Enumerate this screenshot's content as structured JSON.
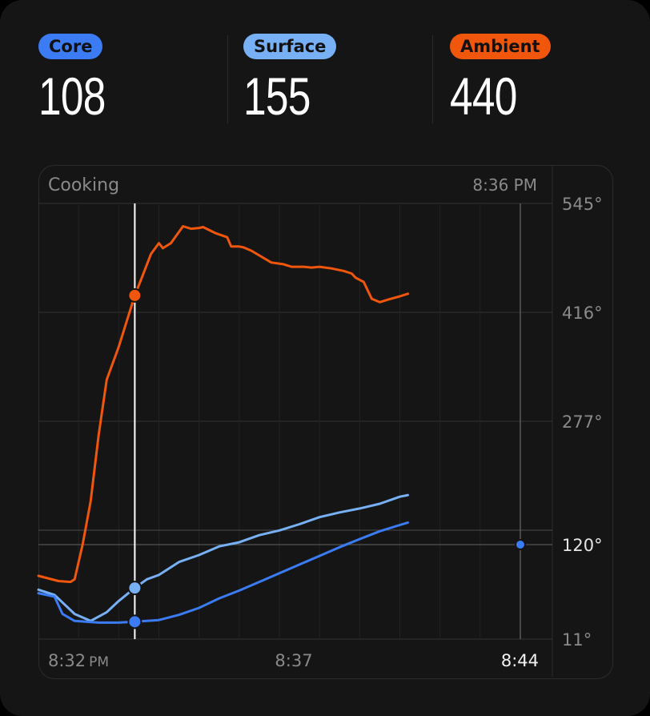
{
  "stats": [
    {
      "label": "Core",
      "value": "108",
      "color": "#3b7cf5"
    },
    {
      "label": "Surface",
      "value": "155",
      "color": "#78b0f5"
    },
    {
      "label": "Ambient",
      "value": "440",
      "color": "#f0560c"
    }
  ],
  "panel": {
    "status": "Cooking",
    "time": "8:36 PM"
  },
  "chart_data": {
    "type": "line",
    "xlabel": "",
    "ylabel": "",
    "x_ticks": [
      {
        "label": "8:32",
        "suffix": "PM",
        "t": 0
      },
      {
        "label": "8:37",
        "t": 5
      },
      {
        "label": "8:44",
        "t": 12
      }
    ],
    "y_ticks": [
      "545°",
      "416°",
      "277°",
      "120°",
      "11°"
    ],
    "y_tick_values": [
      545,
      416,
      277,
      120,
      11
    ],
    "ylim": [
      11,
      545
    ],
    "xlim": [
      0,
      12
    ],
    "cursor_t": 2.4,
    "target": {
      "label": "120°",
      "value": 120
    },
    "series": [
      {
        "name": "Ambient",
        "color": "#f0560c",
        "points": [
          [
            0,
            84
          ],
          [
            0.5,
            78
          ],
          [
            0.8,
            77
          ],
          [
            0.9,
            80
          ],
          [
            1.1,
            120
          ],
          [
            1.3,
            175
          ],
          [
            1.5,
            260
          ],
          [
            1.7,
            330
          ],
          [
            2.0,
            372
          ],
          [
            2.2,
            405
          ],
          [
            2.4,
            436
          ],
          [
            2.6,
            460
          ],
          [
            2.8,
            485
          ],
          [
            3.0,
            498
          ],
          [
            3.1,
            492
          ],
          [
            3.3,
            498
          ],
          [
            3.6,
            518
          ],
          [
            3.8,
            515
          ],
          [
            4.0,
            516
          ],
          [
            4.1,
            517
          ],
          [
            4.4,
            510
          ],
          [
            4.7,
            505
          ],
          [
            4.8,
            494
          ],
          [
            5.0,
            494
          ],
          [
            5.1,
            493
          ],
          [
            5.3,
            489
          ],
          [
            5.8,
            475
          ],
          [
            6.1,
            473
          ],
          [
            6.3,
            470
          ],
          [
            6.6,
            470
          ],
          [
            6.8,
            469
          ],
          [
            7.0,
            470
          ],
          [
            7.3,
            468
          ],
          [
            7.6,
            465
          ],
          [
            7.8,
            462
          ],
          [
            7.9,
            457
          ],
          [
            8.1,
            452
          ],
          [
            8.3,
            432
          ],
          [
            8.5,
            428
          ],
          [
            8.7,
            431
          ],
          [
            9.0,
            435
          ],
          [
            9.2,
            438
          ]
        ]
      },
      {
        "name": "Surface",
        "color": "#78b0f5",
        "points": [
          [
            0,
            68
          ],
          [
            0.4,
            62
          ],
          [
            0.9,
            40
          ],
          [
            1.3,
            32
          ],
          [
            1.7,
            42
          ],
          [
            2.0,
            55
          ],
          [
            2.4,
            70
          ],
          [
            2.7,
            80
          ],
          [
            3.0,
            85
          ],
          [
            3.5,
            100
          ],
          [
            4.0,
            108
          ],
          [
            4.5,
            118
          ],
          [
            5.0,
            123
          ],
          [
            5.5,
            132
          ],
          [
            6.0,
            138
          ],
          [
            6.5,
            146
          ],
          [
            7.0,
            155
          ],
          [
            7.5,
            161
          ],
          [
            8.0,
            166
          ],
          [
            8.5,
            172
          ],
          [
            9.0,
            181
          ],
          [
            9.2,
            183
          ]
        ]
      },
      {
        "name": "Core",
        "color": "#3b7cf5",
        "points": [
          [
            0,
            64
          ],
          [
            0.4,
            60
          ],
          [
            0.6,
            40
          ],
          [
            0.9,
            32
          ],
          [
            1.5,
            30
          ],
          [
            2.0,
            30
          ],
          [
            2.4,
            31
          ],
          [
            3.0,
            33
          ],
          [
            3.5,
            39
          ],
          [
            4.0,
            47
          ],
          [
            4.5,
            58
          ],
          [
            5.0,
            67
          ],
          [
            5.5,
            77
          ],
          [
            6.0,
            87
          ],
          [
            6.5,
            97
          ],
          [
            7.0,
            107
          ],
          [
            7.5,
            117
          ],
          [
            8.0,
            127
          ],
          [
            8.5,
            137
          ],
          [
            9.0,
            145
          ],
          [
            9.2,
            148
          ]
        ]
      }
    ]
  }
}
